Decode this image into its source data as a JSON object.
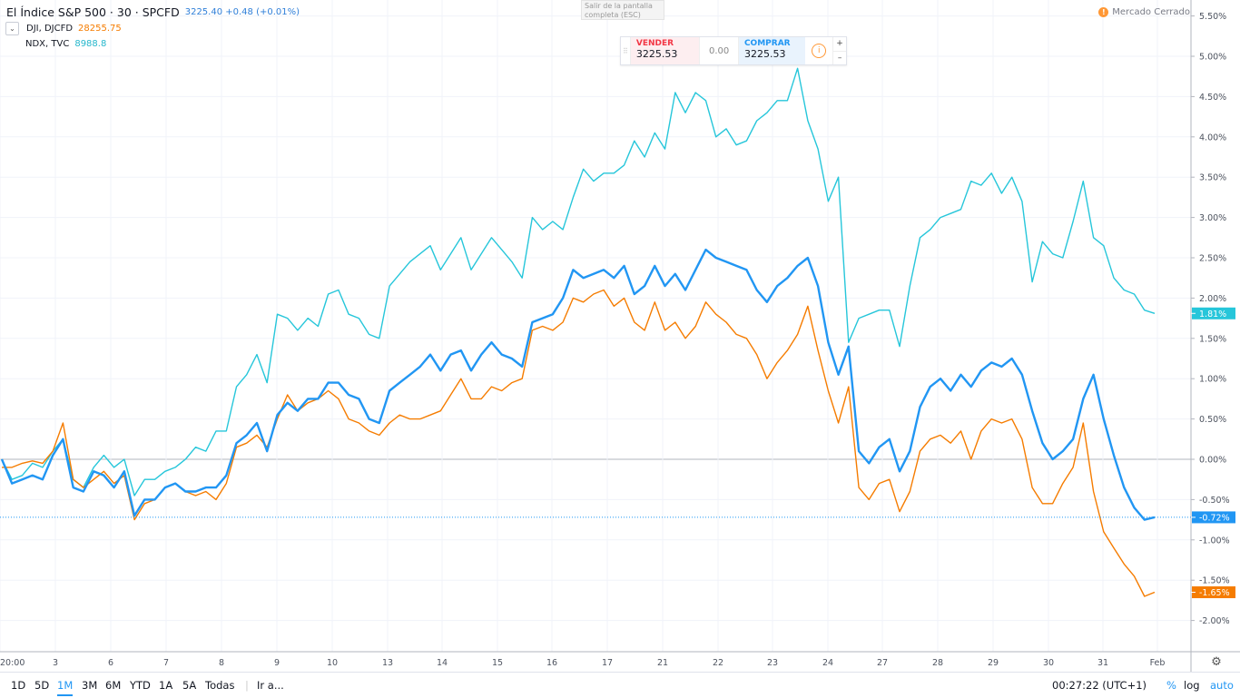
{
  "legend": {
    "main_title": "El Índice S&P 500 · 30 · SPCFD",
    "main_value": "3225.40 +0.48 (+0.01%)",
    "collapse_icon": "chevron-down-icon",
    "series2_symbol": "DJI, DJCFD",
    "series2_value": "28255.75",
    "series3_symbol": "NDX, TVC",
    "series3_value": "8988.8"
  },
  "exit_fullscreen": "Salir de la pantalla completa (ESC)",
  "market_status": "Mercado Cerrado",
  "trade_panel": {
    "sell_label": "VENDER",
    "sell_price": "3225.53",
    "spread": "0.00",
    "buy_label": "COMPRAR",
    "buy_price": "3225.53",
    "plus": "+",
    "minus": "–"
  },
  "bottom_bar": {
    "ranges": [
      "1D",
      "5D",
      "1M",
      "3M",
      "6M",
      "YTD",
      "1A",
      "5A",
      "Todas"
    ],
    "active_range": "1M",
    "goto": "Ir a...",
    "time": "00:27:22 (UTC+1)",
    "percent": "%",
    "log": "log",
    "auto": "auto"
  },
  "colors": {
    "spx": "#2196f3",
    "dji": "#f57c00",
    "ndx": "#26c6da",
    "grid": "#f0f3fa",
    "zero": "#b2b5be"
  },
  "chart_data": {
    "type": "line",
    "x_labels": [
      "20:00",
      "3",
      "6",
      "7",
      "8",
      "9",
      "10",
      "13",
      "14",
      "15",
      "16",
      "17",
      "21",
      "22",
      "23",
      "24",
      "27",
      "28",
      "29",
      "30",
      "31",
      "Feb"
    ],
    "y_ticks": [
      "5.50%",
      "5.00%",
      "4.50%",
      "4.00%",
      "3.50%",
      "3.00%",
      "2.50%",
      "2.00%",
      "1.50%",
      "1.00%",
      "0.50%",
      "0.00%",
      "-0.50%",
      "-1.00%",
      "-1.50%",
      "-2.00%"
    ],
    "ylim": [
      -2.3,
      5.6
    ],
    "y_unit": "%",
    "series": [
      {
        "name": "El Índice S&P 500",
        "color": "#2196f3",
        "last_label": "-0.72%",
        "last": -0.72,
        "values": [
          0,
          -0.3,
          -0.25,
          -0.2,
          -0.25,
          0.05,
          0.25,
          -0.35,
          -0.4,
          -0.15,
          -0.2,
          -0.35,
          -0.15,
          -0.7,
          -0.5,
          -0.5,
          -0.35,
          -0.3,
          -0.4,
          -0.4,
          -0.35,
          -0.35,
          -0.2,
          0.2,
          0.3,
          0.45,
          0.1,
          0.55,
          0.7,
          0.6,
          0.75,
          0.75,
          0.95,
          0.95,
          0.8,
          0.75,
          0.5,
          0.45,
          0.85,
          0.95,
          1.05,
          1.15,
          1.3,
          1.1,
          1.3,
          1.35,
          1.1,
          1.3,
          1.45,
          1.3,
          1.25,
          1.15,
          1.7,
          1.75,
          1.8,
          2.0,
          2.35,
          2.25,
          2.3,
          2.35,
          2.25,
          2.4,
          2.05,
          2.15,
          2.4,
          2.15,
          2.3,
          2.1,
          2.35,
          2.6,
          2.5,
          2.45,
          2.4,
          2.35,
          2.1,
          1.95,
          2.15,
          2.25,
          2.4,
          2.5,
          2.15,
          1.45,
          1.05,
          1.4,
          0.1,
          -0.05,
          0.15,
          0.25,
          -0.15,
          0.1,
          0.65,
          0.9,
          1.0,
          0.85,
          1.05,
          0.9,
          1.1,
          1.2,
          1.15,
          1.25,
          1.05,
          0.6,
          0.2,
          0.0,
          0.1,
          0.25,
          0.75,
          1.05,
          0.5,
          0.05,
          -0.35,
          -0.6,
          -0.75,
          -0.72
        ]
      },
      {
        "name": "DJI",
        "color": "#f57c00",
        "last_label": "-1.65%",
        "last": -1.65,
        "values": [
          -0.1,
          -0.1,
          -0.05,
          -0.02,
          -0.05,
          0.1,
          0.45,
          -0.25,
          -0.35,
          -0.25,
          -0.15,
          -0.3,
          -0.2,
          -0.75,
          -0.55,
          -0.5,
          -0.35,
          -0.3,
          -0.4,
          -0.45,
          -0.4,
          -0.5,
          -0.3,
          0.15,
          0.2,
          0.3,
          0.15,
          0.5,
          0.8,
          0.6,
          0.7,
          0.75,
          0.85,
          0.75,
          0.5,
          0.45,
          0.35,
          0.3,
          0.45,
          0.55,
          0.5,
          0.5,
          0.55,
          0.6,
          0.8,
          1.0,
          0.75,
          0.75,
          0.9,
          0.85,
          0.95,
          1.0,
          1.6,
          1.65,
          1.6,
          1.7,
          2.0,
          1.95,
          2.05,
          2.1,
          1.9,
          2.0,
          1.7,
          1.6,
          1.95,
          1.6,
          1.7,
          1.5,
          1.65,
          1.95,
          1.8,
          1.7,
          1.55,
          1.5,
          1.3,
          1.0,
          1.2,
          1.35,
          1.55,
          1.9,
          1.35,
          0.85,
          0.45,
          0.9,
          -0.35,
          -0.5,
          -0.3,
          -0.25,
          -0.65,
          -0.4,
          0.1,
          0.25,
          0.3,
          0.2,
          0.35,
          0.0,
          0.35,
          0.5,
          0.45,
          0.5,
          0.25,
          -0.35,
          -0.55,
          -0.55,
          -0.3,
          -0.1,
          0.45,
          -0.4,
          -0.9,
          -1.1,
          -1.3,
          -1.45,
          -1.7,
          -1.65
        ]
      },
      {
        "name": "NDX",
        "color": "#26c6da",
        "last_label": "1.81%",
        "last": 1.81,
        "values": [
          0,
          -0.25,
          -0.2,
          -0.05,
          -0.1,
          0.1,
          0.25,
          -0.25,
          -0.35,
          -0.1,
          0.05,
          -0.1,
          0.0,
          -0.45,
          -0.25,
          -0.25,
          -0.15,
          -0.1,
          0.0,
          0.15,
          0.1,
          0.35,
          0.35,
          0.9,
          1.05,
          1.3,
          0.95,
          1.8,
          1.75,
          1.6,
          1.75,
          1.65,
          2.05,
          2.1,
          1.8,
          1.75,
          1.55,
          1.5,
          2.15,
          2.3,
          2.45,
          2.55,
          2.65,
          2.35,
          2.55,
          2.75,
          2.35,
          2.55,
          2.75,
          2.6,
          2.45,
          2.25,
          3.0,
          2.85,
          2.95,
          2.85,
          3.25,
          3.6,
          3.45,
          3.55,
          3.55,
          3.65,
          3.95,
          3.75,
          4.05,
          3.85,
          4.55,
          4.3,
          4.55,
          4.45,
          4.0,
          4.1,
          3.9,
          3.95,
          4.2,
          4.3,
          4.45,
          4.45,
          4.85,
          4.2,
          3.85,
          3.2,
          3.5,
          1.45,
          1.75,
          1.8,
          1.85,
          1.85,
          1.4,
          2.15,
          2.75,
          2.85,
          3.0,
          3.05,
          3.1,
          3.45,
          3.4,
          3.55,
          3.3,
          3.5,
          3.2,
          2.2,
          2.7,
          2.55,
          2.5,
          2.95,
          3.45,
          2.75,
          2.65,
          2.25,
          2.1,
          2.05,
          1.85,
          1.81
        ]
      }
    ]
  }
}
